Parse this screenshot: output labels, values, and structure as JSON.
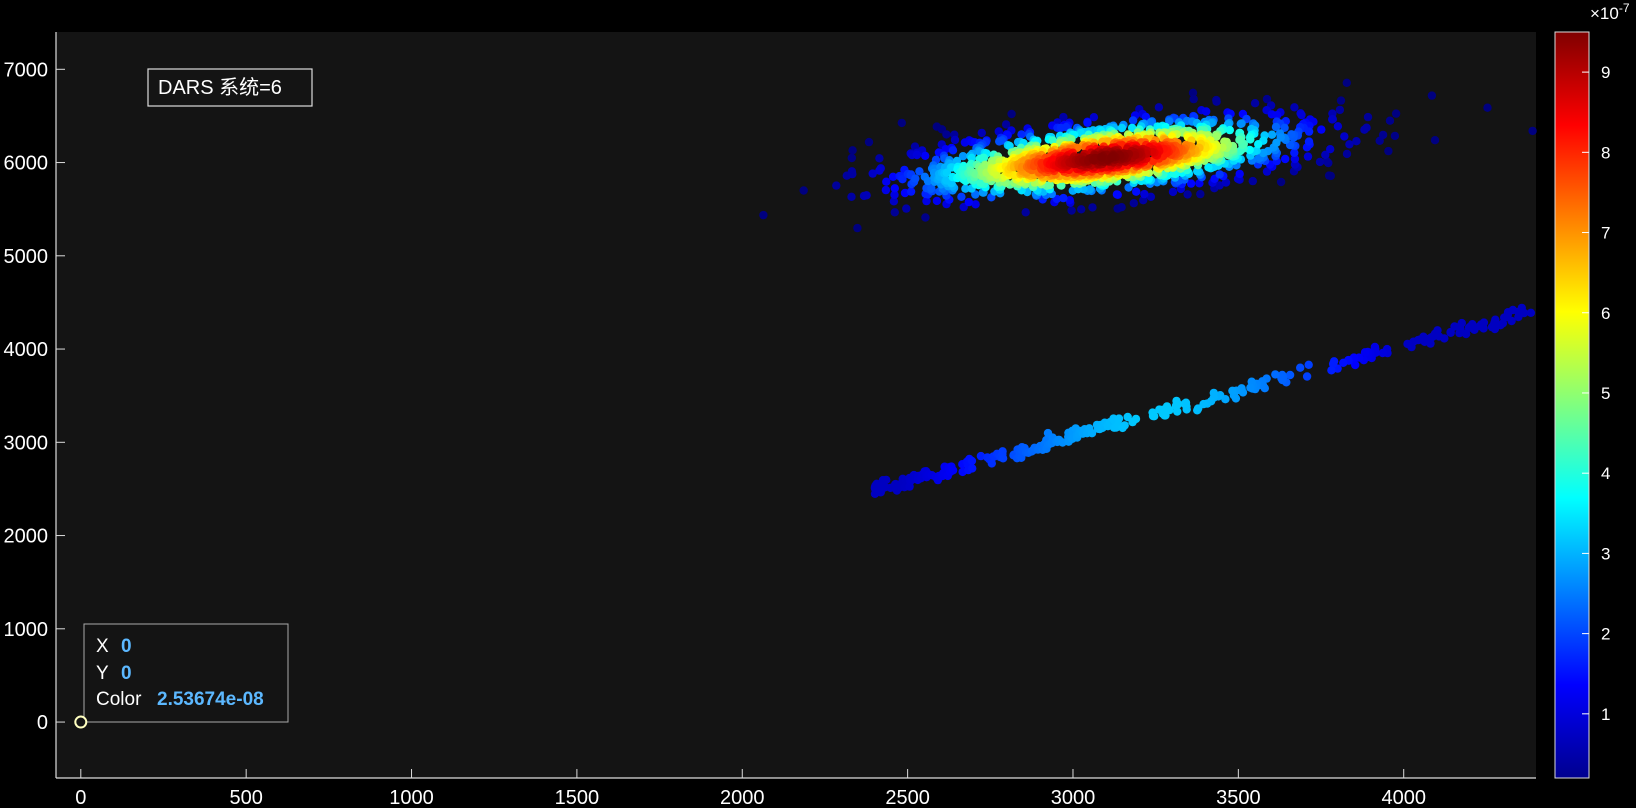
{
  "chart_data": {
    "type": "scatter",
    "annotation": "DARS 系统=6",
    "xlim": [
      -75,
      4400
    ],
    "ylim": [
      -600,
      7400
    ],
    "xticks": [
      0,
      500,
      1000,
      1500,
      2000,
      2500,
      3000,
      3500,
      4000
    ],
    "yticks": [
      0,
      1000,
      2000,
      3000,
      4000,
      5000,
      6000,
      7000
    ],
    "background": "#141414",
    "colorbar": {
      "colormap": "jet",
      "clim": [
        0.2,
        9.5
      ],
      "ticks": [
        1,
        2,
        3,
        4,
        5,
        6,
        7,
        8,
        9
      ],
      "exponent_label": "×10",
      "exponent_power": "-7"
    },
    "cluster": {
      "center": [
        3100,
        6050
      ],
      "spread": [
        300,
        330
      ],
      "count": 1400,
      "peak_color": 9.5
    },
    "band": {
      "start": [
        2400,
        2480
      ],
      "end": [
        4400,
        4420
      ],
      "count": 300,
      "peak_color": 3.2
    },
    "datatip": {
      "x_key": "X",
      "x_value": "0",
      "y_key": "Y",
      "y_value": "0",
      "c_key": "Color",
      "c_value": "2.53674e-08",
      "point": [
        0,
        0
      ]
    }
  }
}
